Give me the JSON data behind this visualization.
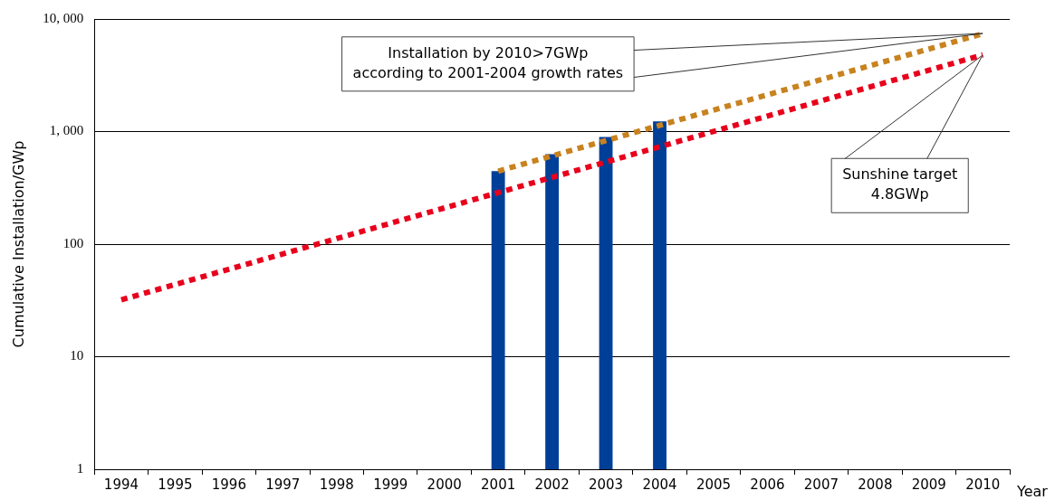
{
  "chart_data": {
    "type": "bar",
    "xlabel": "Year",
    "ylabel": "Cumulative Installation/GWp",
    "categories": [
      "1994",
      "1995",
      "1996",
      "1997",
      "1998",
      "1999",
      "2000",
      "2001",
      "2002",
      "2003",
      "2004",
      "2005",
      "2006",
      "2007",
      "2008",
      "2009",
      "2010"
    ],
    "series": [
      {
        "color": "#003f98",
        "values": [
          null,
          null,
          null,
          null,
          null,
          null,
          null,
          445,
          630,
          895,
          1230,
          null,
          null,
          null,
          null,
          null,
          null
        ]
      },
      {
        "type": "line",
        "color": "#e8001c",
        "values": [
          32,
          null,
          null,
          null,
          null,
          null,
          null,
          null,
          null,
          null,
          null,
          null,
          null,
          null,
          null,
          null,
          4800
        ]
      },
      {
        "type": "line",
        "color": "#c8821e",
        "values": [
          null,
          null,
          null,
          null,
          null,
          null,
          null,
          445,
          null,
          null,
          null,
          null,
          null,
          null,
          null,
          null,
          7400
        ]
      }
    ],
    "log": "y",
    "ylim": [
      1,
      10000
    ],
    "yticks": [
      1,
      10,
      100,
      {
        "value": 1000,
        "label": "1, 000"
      },
      {
        "value": 10000,
        "label": "10, 000"
      }
    ],
    "grid": "y",
    "marker": "none",
    "line_style": "dashed",
    "annotations": [
      {
        "text": "Installation by 2010>7GWp\naccording to 2001-2004 growth rates",
        "x": "2010",
        "y": 7400
      },
      {
        "text": "Sunshine target\n4.8GWp",
        "x": "2010",
        "y": 4800
      }
    ]
  }
}
